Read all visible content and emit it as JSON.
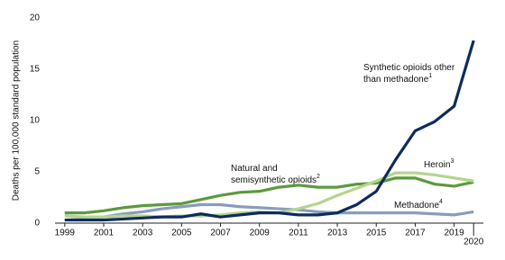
{
  "chart_data": {
    "type": "line",
    "y_label": "Deaths per 100,000 standard population",
    "x": [
      1999,
      2000,
      2001,
      2002,
      2003,
      2004,
      2005,
      2006,
      2007,
      2008,
      2009,
      2010,
      2011,
      2012,
      2013,
      2014,
      2015,
      2016,
      2017,
      2018,
      2019,
      2020
    ],
    "series": [
      {
        "label": [
          "Natural and",
          "semisynthetic opioids"
        ],
        "superscript": "2",
        "color": "#5b9a3c",
        "values": [
          1.0,
          1.0,
          1.2,
          1.5,
          1.7,
          1.8,
          1.9,
          2.3,
          2.7,
          3.0,
          3.1,
          3.5,
          3.7,
          3.5,
          3.5,
          3.8,
          3.9,
          4.4,
          4.4,
          3.8,
          3.6,
          4.0
        ]
      },
      {
        "label": [
          "Methadone"
        ],
        "superscript": "4",
        "color": "#8a9bbd",
        "values": [
          0.3,
          0.4,
          0.6,
          0.9,
          1.1,
          1.4,
          1.6,
          1.8,
          1.8,
          1.6,
          1.5,
          1.4,
          1.3,
          1.1,
          1.0,
          1.0,
          1.0,
          1.0,
          1.0,
          0.9,
          0.8,
          1.1
        ]
      },
      {
        "label": [
          "Heroin"
        ],
        "superscript": "3",
        "color": "#b5d48e",
        "values": [
          0.7,
          0.6,
          0.6,
          0.7,
          0.7,
          0.6,
          0.7,
          0.7,
          0.8,
          1.0,
          1.1,
          1.0,
          1.4,
          1.9,
          2.7,
          3.4,
          4.1,
          4.9,
          4.9,
          4.7,
          4.4,
          4.1
        ]
      },
      {
        "label": [
          "Synthetic opioids other",
          "than methadone"
        ],
        "superscript": "1",
        "color": "#0d2b5e",
        "values": [
          0.3,
          0.3,
          0.3,
          0.4,
          0.5,
          0.6,
          0.6,
          0.9,
          0.6,
          0.8,
          1.0,
          1.0,
          0.8,
          0.8,
          1.0,
          1.8,
          3.1,
          6.2,
          9.0,
          9.9,
          11.4,
          17.8
        ]
      }
    ],
    "xlim": [
      1998.5,
      2020.5
    ],
    "xticks": [
      1999,
      2001,
      2003,
      2005,
      2007,
      2009,
      2011,
      2013,
      2015,
      2017,
      2019,
      2020
    ],
    "ylim": [
      0,
      20
    ],
    "yticks": [
      0,
      5,
      10,
      15,
      20
    ]
  }
}
